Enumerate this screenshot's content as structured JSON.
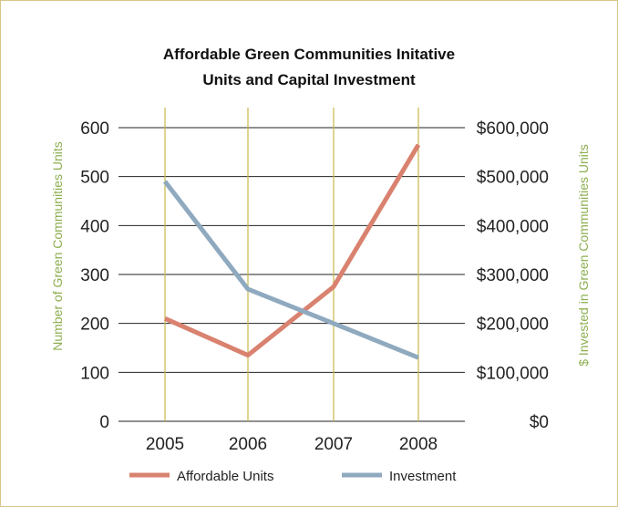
{
  "chart_data": {
    "type": "line",
    "title": [
      "Affordable Green Communities Initative",
      "Units and Capital Investment"
    ],
    "x": [
      "2005",
      "2006",
      "2007",
      "2008"
    ],
    "y_left": {
      "label": "Number of Green Communities Units",
      "lim": [
        0,
        600
      ],
      "ticks": [
        "0",
        "100",
        "200",
        "300",
        "400",
        "500",
        "600"
      ]
    },
    "y_right": {
      "label": "$ Invested in Green Communities Units",
      "lim": [
        0,
        600000
      ],
      "ticks": [
        "$0",
        "$100,000",
        "$200,000",
        "$300,000",
        "$400,000",
        "$500,000",
        "$600,000"
      ]
    },
    "series": [
      {
        "name": "Affordable Units",
        "axis": "left",
        "color": "#d9826f",
        "values": [
          210,
          135,
          275,
          565
        ]
      },
      {
        "name": "Investment",
        "axis": "right",
        "color": "#8fa9bf",
        "values": [
          490000,
          270000,
          200000,
          130000
        ]
      }
    ],
    "grid": {
      "horizontal": true,
      "horizontal_color": "#222222",
      "vertical": true,
      "vertical_color": "#c8b84a"
    },
    "legend": "bottom"
  }
}
